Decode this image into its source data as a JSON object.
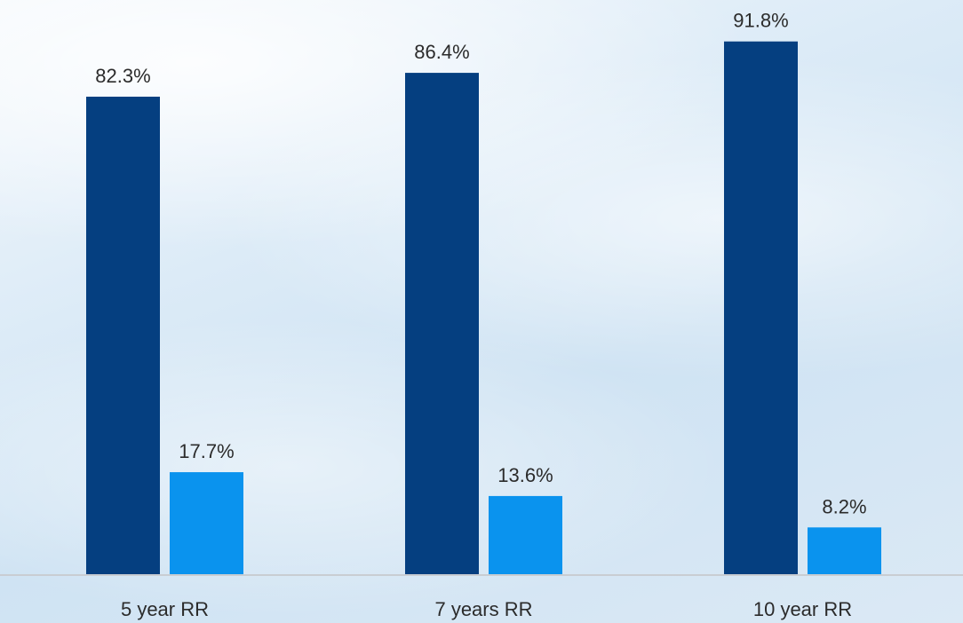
{
  "chart_data": {
    "type": "bar",
    "categories": [
      "5 year RR",
      "7 years RR",
      "10 year RR"
    ],
    "series": [
      {
        "values": [
          82.3,
          86.4,
          91.8
        ],
        "labels": [
          "82.3%",
          "86.4%",
          "91.8%"
        ],
        "color": "#053f80"
      },
      {
        "values": [
          17.7,
          13.6,
          8.2
        ],
        "labels": [
          "17.7%",
          "13.6%",
          "8.2%"
        ],
        "color": "#0a93ee"
      }
    ],
    "ylim": [
      0,
      100
    ],
    "grid": false,
    "baseline_color": "#c9cdd2",
    "text_color": "#2b2b2b"
  }
}
